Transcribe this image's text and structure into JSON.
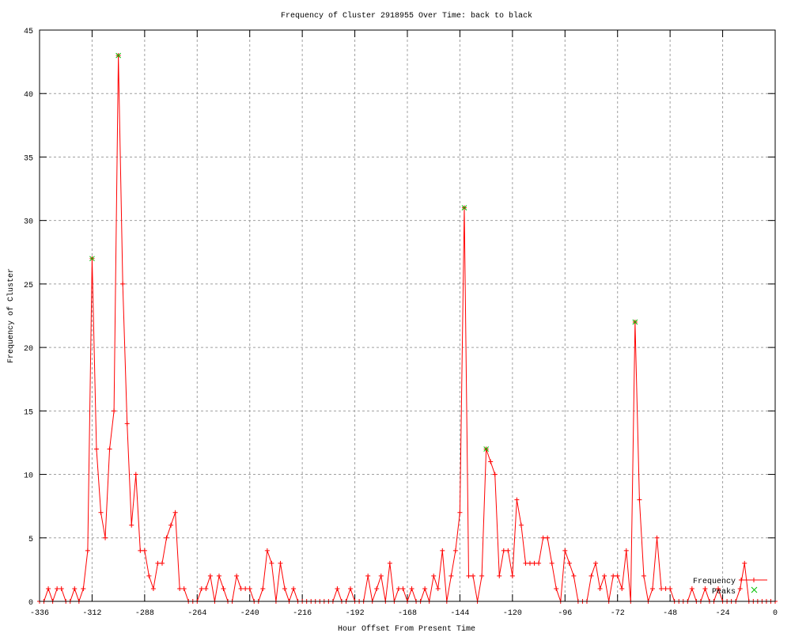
{
  "chart_data": {
    "type": "line",
    "title": "Frequency of Cluster 2918955 Over Time: back to black",
    "xlabel": "Hour Offset From Present Time",
    "ylabel": "Frequency of Cluster",
    "xlim": [
      -336,
      0
    ],
    "ylim": [
      0,
      45
    ],
    "xticks": [
      -336,
      -312,
      -288,
      -264,
      -240,
      -216,
      -192,
      -168,
      -144,
      -120,
      -96,
      -72,
      -48,
      -24,
      0
    ],
    "yticks": [
      0,
      5,
      10,
      15,
      20,
      25,
      30,
      35,
      40,
      45
    ],
    "grid": true,
    "legend_position": "bottom-right",
    "series": [
      {
        "name": "Frequency",
        "color": "#ff0000",
        "marker": "plus",
        "x_start": -336,
        "x_step": 2,
        "values": [
          0,
          0,
          1,
          0,
          1,
          1,
          0,
          0,
          1,
          0,
          1,
          4,
          27,
          12,
          7,
          5,
          12,
          15,
          43,
          25,
          14,
          6,
          10,
          4,
          4,
          2,
          1,
          3,
          3,
          5,
          6,
          7,
          1,
          1,
          0,
          0,
          0,
          1,
          1,
          2,
          0,
          2,
          1,
          0,
          0,
          2,
          1,
          1,
          1,
          0,
          0,
          1,
          4,
          3,
          0,
          3,
          1,
          0,
          1,
          0,
          0,
          0,
          0,
          0,
          0,
          0,
          0,
          0,
          1,
          0,
          0,
          1,
          0,
          0,
          0,
          2,
          0,
          1,
          2,
          0,
          3,
          0,
          1,
          1,
          0,
          1,
          0,
          0,
          1,
          0,
          2,
          1,
          4,
          0,
          2,
          4,
          7,
          31,
          2,
          2,
          0,
          2,
          12,
          11,
          10,
          2,
          4,
          4,
          2,
          8,
          6,
          3,
          3,
          3,
          3,
          5,
          5,
          3,
          1,
          0,
          4,
          3,
          2,
          0,
          0,
          0,
          2,
          3,
          1,
          2,
          0,
          2,
          2,
          1,
          4,
          0,
          22,
          8,
          2,
          0,
          1,
          5,
          1,
          1,
          1,
          0,
          0,
          0,
          0,
          1,
          0,
          0,
          1,
          0,
          0,
          1,
          0,
          0,
          0,
          0,
          1,
          3,
          0,
          0,
          0,
          0,
          0,
          0,
          0
        ]
      },
      {
        "name": "Peaks",
        "color": "#00c000",
        "marker": "cross",
        "points": [
          [
            -312,
            27
          ],
          [
            -300,
            43
          ],
          [
            -142,
            31
          ],
          [
            -132,
            12
          ],
          [
            -64,
            22
          ]
        ]
      }
    ]
  }
}
